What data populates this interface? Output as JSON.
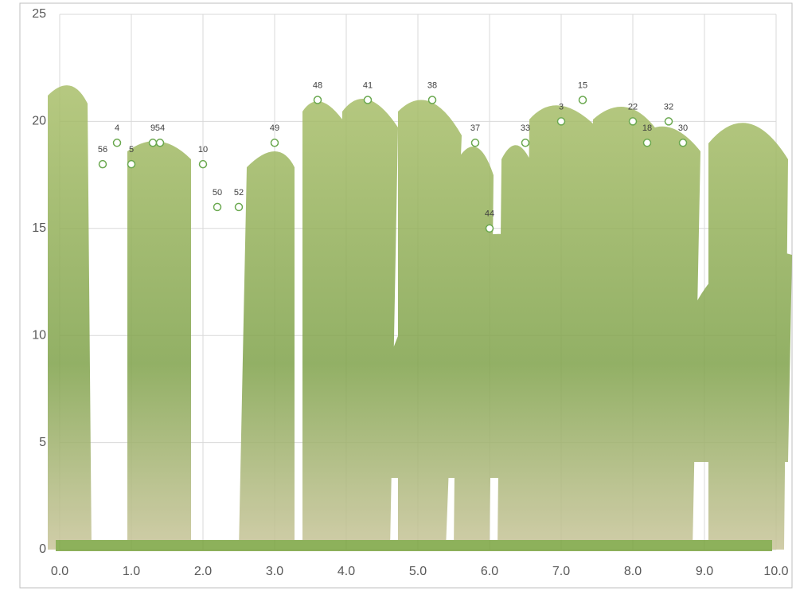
{
  "chart_data": {
    "type": "scatter",
    "xlim": [
      0,
      10
    ],
    "xticks": [
      {
        "value": 0,
        "label": "0.0"
      },
      {
        "value": 1,
        "label": "1.0"
      },
      {
        "value": 2,
        "label": "2.0"
      },
      {
        "value": 3,
        "label": "3.0"
      },
      {
        "value": 4,
        "label": "4.0"
      },
      {
        "value": 5,
        "label": "5.0"
      },
      {
        "value": 6,
        "label": "6.0"
      },
      {
        "value": 7,
        "label": "7.0"
      },
      {
        "value": 8,
        "label": "8.0"
      },
      {
        "value": 9,
        "label": "9.0"
      },
      {
        "value": 10,
        "label": "10.0"
      }
    ],
    "ylim": [
      0,
      25
    ],
    "yticks": [
      0,
      5,
      10,
      15,
      20,
      25
    ],
    "grid": true,
    "series": [
      {
        "color": "#6aa84f",
        "x": [
          0.6,
          0.8,
          1.0,
          1.3,
          1.4,
          2.0,
          2.2,
          2.5,
          3.0,
          3.6,
          4.3,
          5.2,
          5.8,
          6.0,
          6.5,
          7.0,
          7.3,
          8.0,
          8.2,
          8.5,
          8.7
        ],
        "values": [
          18,
          19,
          18,
          19,
          19,
          18,
          16,
          16,
          19,
          21,
          21,
          21,
          19,
          15,
          19,
          20,
          21,
          20,
          19,
          20,
          19
        ],
        "labels": [
          "56",
          "4",
          "5",
          "9",
          "54",
          "10",
          "50",
          "52",
          "49",
          "48",
          "41",
          "38",
          "37",
          "44",
          "33",
          "3",
          "15",
          "22",
          "18",
          "32",
          "30"
        ]
      }
    ]
  }
}
